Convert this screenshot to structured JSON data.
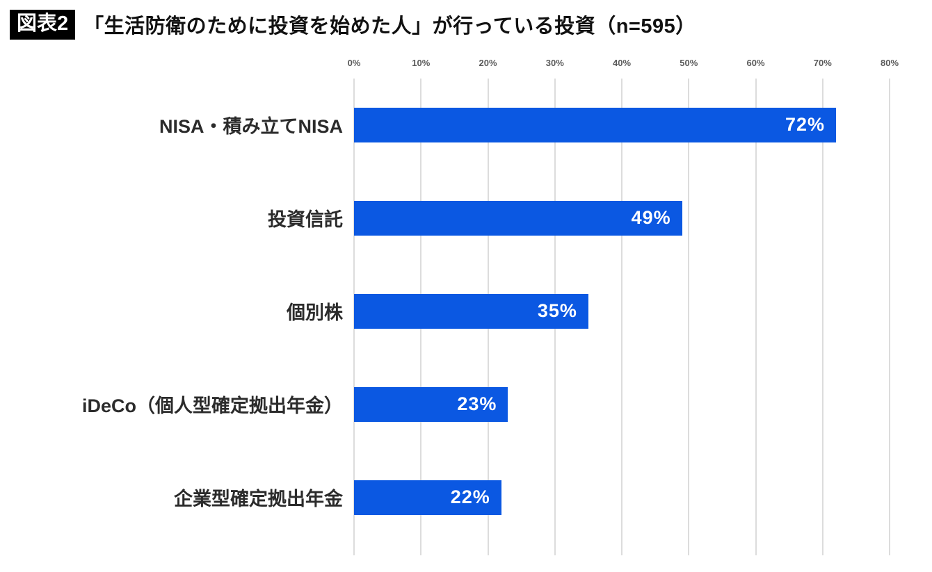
{
  "header": {
    "badge": "図表2",
    "title": "「生活防衛のために投資を始めた人」が行っている投資（n=595）"
  },
  "chart_data": {
    "type": "bar",
    "orientation": "horizontal",
    "title": "「生活防衛のために投資を始めた人」が行っている投資（n=595）",
    "categories": [
      "NISA・積み立てNISA",
      "投資信託",
      "個別株",
      "iDeCo（個人型確定拠出年金）",
      "企業型確定拠出年金"
    ],
    "values": [
      72,
      49,
      35,
      23,
      22
    ],
    "value_labels": [
      "72%",
      "49%",
      "35%",
      "23%",
      "22%"
    ],
    "x_ticks": [
      "0%",
      "10%",
      "20%",
      "30%",
      "40%",
      "50%",
      "60%",
      "70%",
      "80%"
    ],
    "xlim": [
      0,
      80
    ],
    "xlabel": "",
    "ylabel": "",
    "grid": true,
    "legend": false,
    "colors": {
      "bar": "#0b58e2",
      "value_label": "#ffffff",
      "gridline": "#dcdcdc",
      "badge_bg": "#000000",
      "badge_text": "#ffffff"
    }
  }
}
